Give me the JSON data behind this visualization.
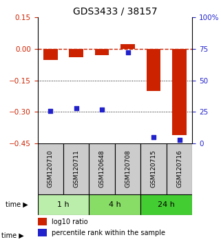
{
  "title": "GDS3433 / 38157",
  "samples": [
    "GSM120710",
    "GSM120711",
    "GSM120648",
    "GSM120708",
    "GSM120715",
    "GSM120716"
  ],
  "log10_ratio": [
    -0.055,
    -0.042,
    -0.032,
    0.022,
    -0.2,
    -0.41
  ],
  "percentile_rank": [
    26,
    28,
    27,
    72,
    5,
    3
  ],
  "left_ylim": [
    -0.45,
    0.15
  ],
  "left_yticks": [
    0.15,
    0.0,
    -0.15,
    -0.3,
    -0.45
  ],
  "right_yticks": [
    100,
    75,
    50,
    25,
    0
  ],
  "bar_color": "#cc2200",
  "dot_color": "#2222cc",
  "time_groups": [
    {
      "label": "1 h",
      "start": 0,
      "end": 2,
      "color": "#bbeeaa"
    },
    {
      "label": "4 h",
      "start": 2,
      "end": 4,
      "color": "#88dd66"
    },
    {
      "label": "24 h",
      "start": 4,
      "end": 6,
      "color": "#44cc33"
    }
  ],
  "legend_bar_label": "log10 ratio",
  "legend_dot_label": "percentile rank within the sample",
  "hline_zero_color": "#cc2200",
  "hlines_dotted": [
    -0.15,
    -0.3
  ],
  "title_fontsize": 10,
  "tick_fontsize": 7.5,
  "label_fontsize": 6.5
}
